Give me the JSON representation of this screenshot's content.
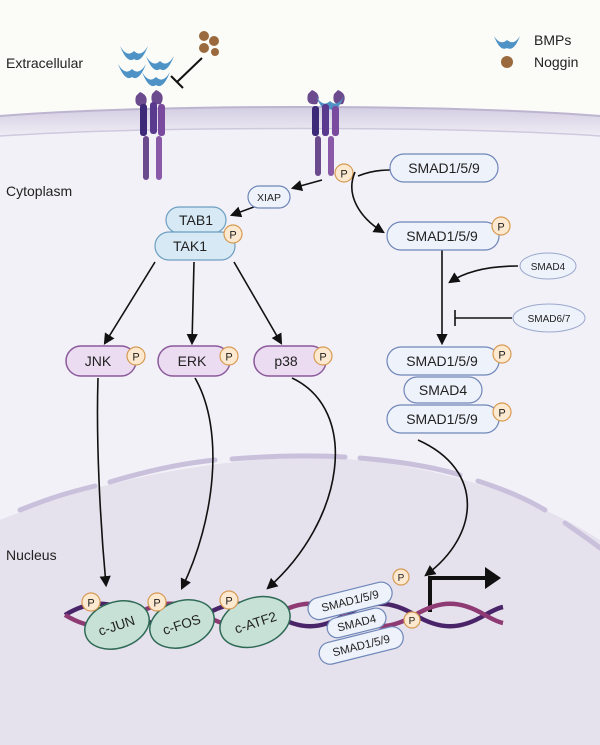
{
  "compartments": {
    "extracellular": "Extracellular",
    "cytoplasm": "Cytoplasm",
    "nucleus": "Nucleus"
  },
  "legend": {
    "bmps": "BMPs",
    "noggin": "Noggin"
  },
  "nodes": {
    "xiap": "XIAP",
    "tab1": "TAB1",
    "tak1": "TAK1",
    "smad159_top": "SMAD1/5/9",
    "smad159_mid": "SMAD1/5/9",
    "smad4_side": "SMAD4",
    "smad67": "SMAD6/7",
    "jnk": "JNK",
    "erk": "ERK",
    "p38": "p38",
    "complex_smad159_a": "SMAD1/5/9",
    "complex_smad4": "SMAD4",
    "complex_smad159_b": "SMAD1/5/9",
    "cjun": "c-JUN",
    "cfos": "c-FOS",
    "catf2": "c-ATF2",
    "nuc_smad159_a": "SMAD1/5/9",
    "nuc_smad4": "SMAD4",
    "nuc_smad159_b": "SMAD1/5/9"
  },
  "phospho": "P",
  "colors": {
    "membrane_top": "#c9c2da",
    "nucleus_fill": "#e4e0ec",
    "kinase_fill": "#ebdcf2",
    "kinase_stroke": "#8a5a9a",
    "smad_fill": "#eef2fb",
    "smad_stroke": "#6e86b8",
    "tak_fill": "#d6e9f4",
    "tf_fill": "#c7e1d6",
    "tf_stroke": "#2f6a56",
    "phos_fill": "#fde9cf",
    "phos_stroke": "#d79a52",
    "bmp": "#4f93c6",
    "noggin": "#9a6a3e",
    "receptor": "#6b4a8e",
    "dna1": "#4a2468",
    "dna2": "#8e3a73"
  }
}
